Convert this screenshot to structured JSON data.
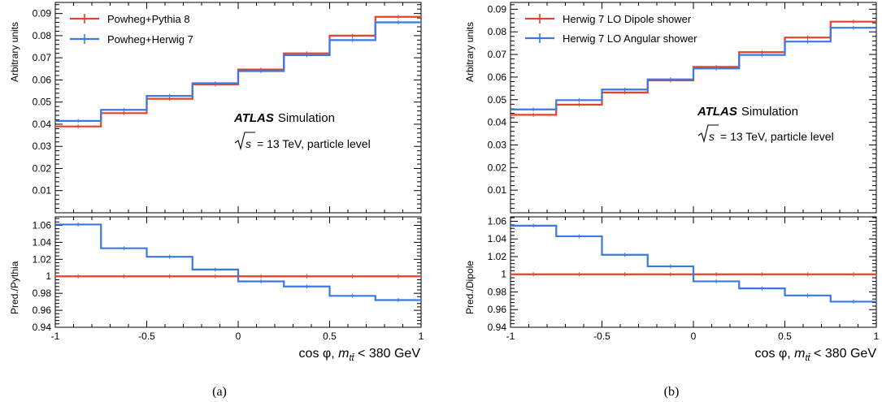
{
  "panels": [
    {
      "caption": "(a)",
      "atlas": {
        "bold": "ATLAS",
        "rest": "Simulation"
      },
      "energy": {
        "sqrt_s": "s",
        "rest": "= 13 TeV, particle level"
      },
      "xlabel": {
        "prefix": "cos φ, ",
        "m": "m",
        "sub": "tt̄",
        "suffix": " < 380 GeV"
      }
    },
    {
      "caption": "(b)",
      "atlas": {
        "bold": "ATLAS",
        "rest": "Simulation"
      },
      "energy": {
        "sqrt_s": "s",
        "rest": "= 13 TeV, particle level"
      },
      "xlabel": {
        "prefix": "cos φ, ",
        "m": "m",
        "sub": "tt̄",
        "suffix": " < 380 GeV"
      }
    }
  ],
  "colors": {
    "red": "#e8412a",
    "blue": "#3a78e8"
  },
  "chart_data": [
    {
      "type": "step",
      "title": "",
      "xlabel": "cos φ, m_tt̄ < 380 GeV",
      "ylabel": "Arbitrary units",
      "x_edges": [
        -1,
        -0.75,
        -0.5,
        -0.25,
        0,
        0.25,
        0.5,
        0.75,
        1
      ],
      "ylim": [
        0,
        0.095
      ],
      "xticks": [
        "-1",
        "-0.5",
        "0",
        "0.5",
        "1"
      ],
      "yticks": [
        "0.01",
        "0.02",
        "0.03",
        "0.04",
        "0.05",
        "0.06",
        "0.07",
        "0.08",
        "0.09"
      ],
      "legend": "top-left",
      "series": [
        {
          "name": "Powheg+Pythia 8",
          "color": "red",
          "values": [
            0.039,
            0.045,
            0.0515,
            0.058,
            0.0647,
            0.072,
            0.08,
            0.0885
          ]
        },
        {
          "name": "Powheg+Herwig 7",
          "color": "blue",
          "values": [
            0.0415,
            0.0465,
            0.0528,
            0.0585,
            0.064,
            0.0712,
            0.078,
            0.086
          ]
        }
      ]
    },
    {
      "type": "step",
      "title": "",
      "xlabel": "cos φ, m_tt̄ < 380 GeV",
      "ylabel": "Pred./Pythia",
      "x_edges": [
        -1,
        -0.75,
        -0.5,
        -0.25,
        0,
        0.25,
        0.5,
        0.75,
        1
      ],
      "ylim": [
        0.94,
        1.07
      ],
      "yticks": [
        "0.94",
        "0.96",
        "0.98",
        "1",
        "1.02",
        "1.04",
        "1.06"
      ],
      "series": [
        {
          "name": "Powheg+Pythia 8",
          "color": "red",
          "values": [
            1,
            1,
            1,
            1,
            1,
            1,
            1,
            1
          ]
        },
        {
          "name": "Powheg+Herwig 7",
          "color": "blue",
          "values": [
            1.061,
            1.033,
            1.023,
            1.008,
            0.994,
            0.988,
            0.977,
            0.972
          ]
        }
      ]
    },
    {
      "type": "step",
      "title": "",
      "xlabel": "cos φ, m_tt̄ < 380 GeV",
      "ylabel": "Arbitrary units",
      "x_edges": [
        -1,
        -0.75,
        -0.5,
        -0.25,
        0,
        0.25,
        0.5,
        0.75,
        1
      ],
      "ylim": [
        0,
        0.093
      ],
      "xticks": [
        "-1",
        "-0.5",
        "0",
        "0.5",
        "1"
      ],
      "yticks": [
        "0.01",
        "0.02",
        "0.03",
        "0.04",
        "0.05",
        "0.06",
        "0.07",
        "0.08",
        "0.09"
      ],
      "legend": "top-left",
      "series": [
        {
          "name": "Herwig 7 LO Dipole shower",
          "color": "red",
          "values": [
            0.0433,
            0.0478,
            0.0532,
            0.0585,
            0.0645,
            0.071,
            0.0775,
            0.0845
          ]
        },
        {
          "name": "Herwig 7 LO Angular shower",
          "color": "blue",
          "values": [
            0.0457,
            0.0498,
            0.0545,
            0.059,
            0.0638,
            0.0698,
            0.0757,
            0.0818
          ]
        }
      ]
    },
    {
      "type": "step",
      "title": "",
      "xlabel": "cos φ, m_tt̄ < 380 GeV",
      "ylabel": "Pred./Dipole",
      "x_edges": [
        -1,
        -0.75,
        -0.5,
        -0.25,
        0,
        0.25,
        0.5,
        0.75,
        1
      ],
      "ylim": [
        0.94,
        1.065
      ],
      "yticks": [
        "0.94",
        "0.96",
        "0.98",
        "1",
        "1.02",
        "1.04",
        "1.06"
      ],
      "series": [
        {
          "name": "Herwig 7 LO Dipole shower",
          "color": "red",
          "values": [
            1,
            1,
            1,
            1,
            1,
            1,
            1,
            1
          ]
        },
        {
          "name": "Herwig 7 LO Angular shower",
          "color": "blue",
          "values": [
            1.055,
            1.043,
            1.022,
            1.009,
            0.992,
            0.984,
            0.976,
            0.969
          ]
        }
      ]
    }
  ]
}
